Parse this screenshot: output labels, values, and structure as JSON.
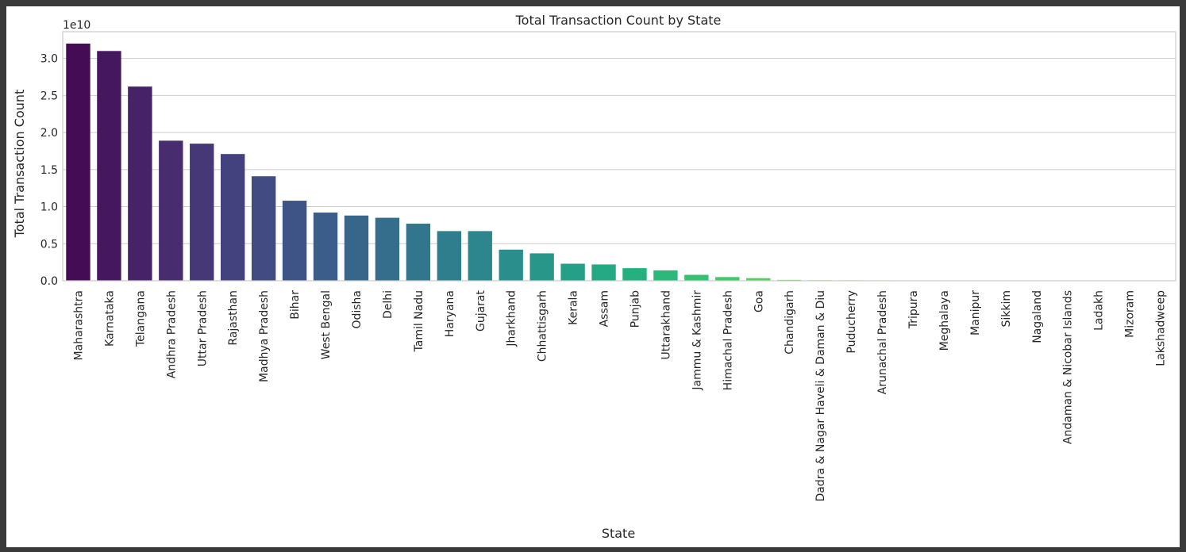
{
  "chart_data": {
    "type": "bar",
    "title": "Total Transaction Count by State",
    "xlabel": "State",
    "ylabel": "Total Transaction Count",
    "y_offset_label": "1e10",
    "y_scale": 10000000000,
    "ylim": [
      0,
      3.36
    ],
    "yticks": [
      0.0,
      0.5,
      1.0,
      1.5,
      2.0,
      2.5,
      3.0
    ],
    "ytick_labels": [
      "0.0",
      "0.5",
      "1.0",
      "1.5",
      "2.0",
      "2.5",
      "3.0"
    ],
    "grid": true,
    "categories": [
      "Maharashtra",
      "Karnataka",
      "Telangana",
      "Andhra Pradesh",
      "Uttar Pradesh",
      "Rajasthan",
      "Madhya Pradesh",
      "Bihar",
      "West Bengal",
      "Odisha",
      "Delhi",
      "Tamil Nadu",
      "Haryana",
      "Gujarat",
      "Jharkhand",
      "Chhattisgarh",
      "Kerala",
      "Assam",
      "Punjab",
      "Uttarakhand",
      "Jammu & Kashmir",
      "Himachal Pradesh",
      "Goa",
      "Chandigarh",
      "Dadra & Nagar Haveli & Daman & Diu",
      "Puducherry",
      "Arunachal Pradesh",
      "Tripura",
      "Meghalaya",
      "Manipur",
      "Sikkim",
      "Nagaland",
      "Andaman & Nicobar Islands",
      "Ladakh",
      "Mizoram",
      "Lakshadweep"
    ],
    "values": [
      3.2,
      3.1,
      2.62,
      1.89,
      1.85,
      1.71,
      1.41,
      1.08,
      0.92,
      0.88,
      0.85,
      0.77,
      0.67,
      0.67,
      0.42,
      0.37,
      0.23,
      0.22,
      0.17,
      0.14,
      0.08,
      0.05,
      0.035,
      0.012,
      0.008,
      0.007,
      0.006,
      0.005,
      0.004,
      0.003,
      0.002,
      0.002,
      0.002,
      0.001,
      0.001,
      0.0002
    ],
    "colors": [
      "#440c54",
      "#45175e",
      "#462368",
      "#472d70",
      "#463877",
      "#44427e",
      "#424b82",
      "#3f5486",
      "#3b5d89",
      "#38668b",
      "#356e8c",
      "#32768d",
      "#2f7e8d",
      "#2d868d",
      "#2a8f8c",
      "#28978a",
      "#269f88",
      "#25a884",
      "#26b07f",
      "#2bb87a",
      "#35c072",
      "#42c869",
      "#53cf5e",
      "#66d553",
      "#7bdb47",
      "#92e03b",
      "#aae330",
      "#c1e526",
      "#d6e620",
      "#e6e61f",
      "#efe620",
      "#f4e622",
      "#f8e624",
      "#fae626",
      "#fbe628",
      "#fde725"
    ]
  }
}
